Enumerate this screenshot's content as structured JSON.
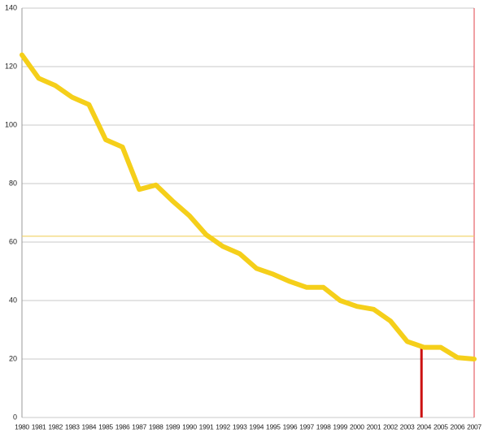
{
  "chart_data": {
    "type": "line",
    "categories": [
      "1980",
      "1981",
      "1982",
      "1983",
      "1984",
      "1985",
      "1986",
      "1987",
      "1988",
      "1989",
      "1990",
      "1991",
      "1992",
      "1993",
      "1994",
      "1995",
      "1996",
      "1997",
      "1998",
      "1999",
      "2000",
      "2001",
      "2002",
      "2003",
      "2004",
      "2005",
      "2006",
      "2007"
    ],
    "series": [
      {
        "color": "#f5cf1a",
        "values": [
          124,
          116,
          113.5,
          109.5,
          107,
          95,
          92.5,
          78,
          79.5,
          74,
          69,
          62.5,
          58.5,
          56,
          51,
          49,
          46.5,
          44.5,
          44.5,
          40,
          38,
          37,
          33,
          26,
          24,
          24,
          20.5,
          20
        ]
      }
    ],
    "ylim": [
      0,
      140
    ],
    "yticks": [
      0,
      20,
      40,
      60,
      80,
      100,
      120,
      140
    ],
    "grid": true,
    "reference_line": {
      "value": 62,
      "color": "#f0d060"
    },
    "highlight": {
      "category": "2004",
      "value": 24,
      "color": "#cc1111"
    }
  }
}
